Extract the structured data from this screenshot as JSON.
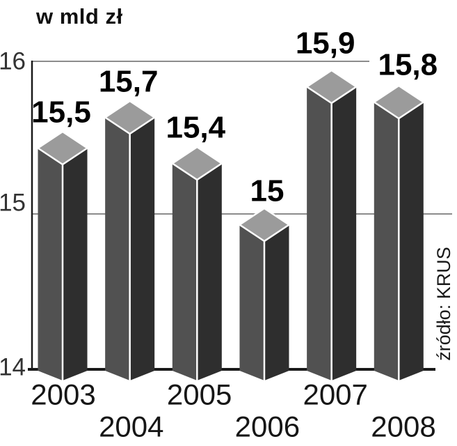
{
  "title": "w mld zł",
  "source": "źródło: KRUS",
  "chart_data": {
    "type": "bar",
    "style": "3d-column",
    "title": "w mld zł",
    "categories": [
      "2003",
      "2004",
      "2005",
      "2006",
      "2007",
      "2008"
    ],
    "values": [
      15.5,
      15.7,
      15.4,
      15.0,
      15.9,
      15.8
    ],
    "value_labels": [
      "15,5",
      "15,7",
      "15,4",
      "15",
      "15,9",
      "15,8"
    ],
    "yticks": [
      "16",
      "15",
      "14"
    ],
    "ylim": [
      14,
      16.2
    ],
    "xlabel": "",
    "ylabel": "w mld zł",
    "grid": "horizontal",
    "legend": "none",
    "source": "źródło: KRUS",
    "colors": {
      "bar_top": "#9b9b9b",
      "bar_left": "#515151",
      "bar_right": "#2e2e2e",
      "edge": "#ffffff",
      "gridline": "#8c8c8c",
      "axis": "#1a1a1a",
      "value_text": "#000000",
      "year_text": "#161616",
      "tick_text": "#333333",
      "background": "#ffffff"
    }
  }
}
